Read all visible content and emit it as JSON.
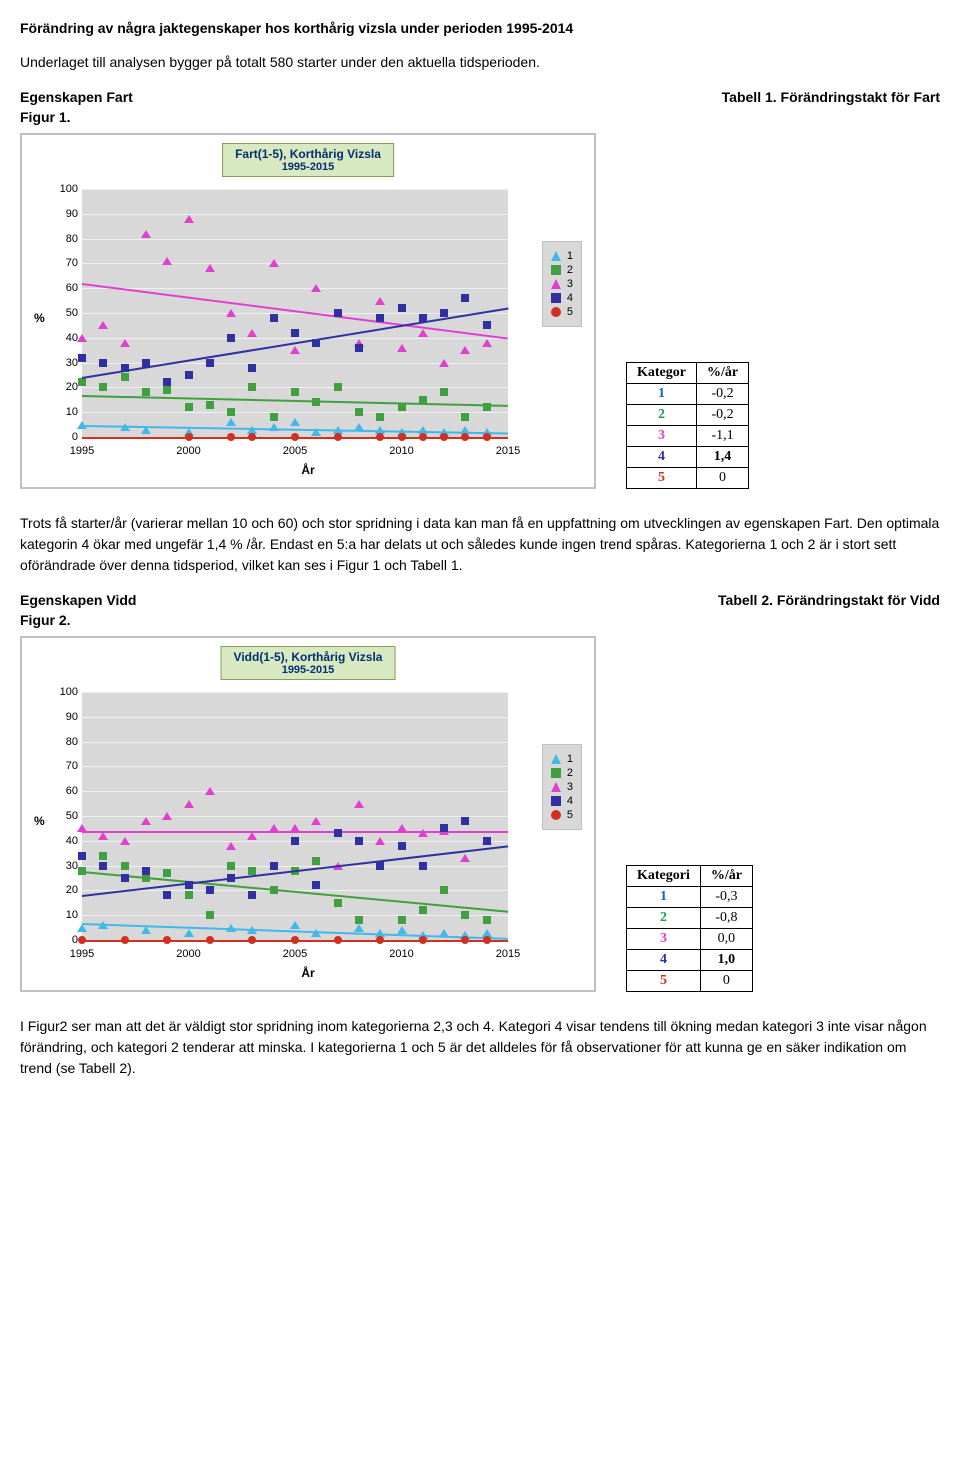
{
  "title": "Förändring av några jaktegenskaper hos korthårig vizsla under perioden 1995-2014",
  "intro": "Underlaget till analysen bygger på totalt 580 starter under den aktuella tidsperioden.",
  "sections": [
    {
      "prop_label": "Egenskapen Fart",
      "table_label": "Tabell 1. Förändringstakt för Fart",
      "fig_label": "Figur 1.",
      "chart": {
        "title_line1": "Fart(1-5), Korthårig Vizsla",
        "title_line2": "1995-2015",
        "ylabel": "%",
        "xlabel": "År",
        "ylim": [
          0,
          100
        ],
        "ytick_step": 10,
        "xlim": [
          1995,
          2015
        ],
        "xticks": [
          1995,
          2000,
          2005,
          2010,
          2015
        ],
        "plot_bg": "#d8d8d8",
        "grid_color": "#f0f0f0",
        "series": [
          {
            "name": "1",
            "color": "#40b8e8",
            "marker": "triangle",
            "points": [
              [
                1995,
                5
              ],
              [
                1997,
                4
              ],
              [
                1998,
                3
              ],
              [
                2000,
                2
              ],
              [
                2002,
                6
              ],
              [
                2003,
                3
              ],
              [
                2004,
                4
              ],
              [
                2005,
                6
              ],
              [
                2006,
                2
              ],
              [
                2007,
                3
              ],
              [
                2008,
                4
              ],
              [
                2009,
                3
              ],
              [
                2010,
                2
              ],
              [
                2011,
                3
              ],
              [
                2012,
                2
              ],
              [
                2013,
                3
              ],
              [
                2014,
                2
              ]
            ],
            "trend": {
              "y1": 5,
              "y2": 2
            }
          },
          {
            "name": "2",
            "color": "#40a040",
            "marker": "square",
            "points": [
              [
                1995,
                22
              ],
              [
                1996,
                20
              ],
              [
                1997,
                24
              ],
              [
                1998,
                18
              ],
              [
                1999,
                19
              ],
              [
                2000,
                12
              ],
              [
                2001,
                13
              ],
              [
                2002,
                10
              ],
              [
                2003,
                20
              ],
              [
                2004,
                8
              ],
              [
                2005,
                18
              ],
              [
                2006,
                14
              ],
              [
                2007,
                20
              ],
              [
                2008,
                10
              ],
              [
                2009,
                8
              ],
              [
                2010,
                12
              ],
              [
                2011,
                15
              ],
              [
                2012,
                18
              ],
              [
                2013,
                8
              ],
              [
                2014,
                12
              ]
            ],
            "trend": {
              "y1": 17,
              "y2": 13
            }
          },
          {
            "name": "3",
            "color": "#e040d0",
            "marker": "triangle",
            "points": [
              [
                1995,
                40
              ],
              [
                1996,
                45
              ],
              [
                1997,
                38
              ],
              [
                1998,
                82
              ],
              [
                1999,
                71
              ],
              [
                2000,
                88
              ],
              [
                2001,
                68
              ],
              [
                2002,
                50
              ],
              [
                2003,
                42
              ],
              [
                2004,
                70
              ],
              [
                2005,
                35
              ],
              [
                2006,
                60
              ],
              [
                2007,
                50
              ],
              [
                2008,
                38
              ],
              [
                2009,
                55
              ],
              [
                2010,
                36
              ],
              [
                2011,
                42
              ],
              [
                2012,
                30
              ],
              [
                2013,
                35
              ],
              [
                2014,
                38
              ]
            ],
            "trend": {
              "y1": 62,
              "y2": 40
            }
          },
          {
            "name": "4",
            "color": "#3030a0",
            "marker": "square",
            "points": [
              [
                1995,
                32
              ],
              [
                1996,
                30
              ],
              [
                1997,
                28
              ],
              [
                1998,
                30
              ],
              [
                1999,
                22
              ],
              [
                2000,
                25
              ],
              [
                2001,
                30
              ],
              [
                2002,
                40
              ],
              [
                2003,
                28
              ],
              [
                2004,
                48
              ],
              [
                2005,
                42
              ],
              [
                2006,
                38
              ],
              [
                2007,
                50
              ],
              [
                2008,
                36
              ],
              [
                2009,
                48
              ],
              [
                2010,
                52
              ],
              [
                2011,
                48
              ],
              [
                2012,
                50
              ],
              [
                2013,
                56
              ],
              [
                2014,
                45
              ]
            ],
            "trend": {
              "y1": 24,
              "y2": 52
            }
          },
          {
            "name": "5",
            "color": "#d03020",
            "marker": "circle",
            "points": [
              [
                2000,
                0
              ],
              [
                2002,
                0
              ],
              [
                2003,
                0
              ],
              [
                2005,
                0
              ],
              [
                2007,
                0
              ],
              [
                2009,
                0
              ],
              [
                2010,
                0
              ],
              [
                2011,
                0
              ],
              [
                2012,
                0
              ],
              [
                2013,
                0
              ],
              [
                2014,
                0
              ]
            ],
            "trend": {
              "y1": 0,
              "y2": 0
            }
          }
        ]
      },
      "table": {
        "headers": [
          "Kategor",
          "%/år"
        ],
        "rows": [
          {
            "cat": "1",
            "val": "-0,2",
            "bold": false
          },
          {
            "cat": "2",
            "val": "-0,2",
            "bold": false
          },
          {
            "cat": "3",
            "val": "-1,1",
            "bold": false
          },
          {
            "cat": "4",
            "val": "1,4",
            "bold": true
          },
          {
            "cat": "5",
            "val": "0",
            "bold": false
          }
        ]
      },
      "commentary": "Trots få starter/år (varierar mellan 10 och 60) och stor spridning i data kan man få en uppfattning om utvecklingen av egenskapen Fart. Den optimala kategorin 4 ökar med ungefär 1,4 % /år. Endast en 5:a har delats ut och således kunde ingen trend spåras. Kategorierna 1 och 2 är i stort sett oförändrade över denna tidsperiod, vilket kan ses i Figur 1 och Tabell 1."
    },
    {
      "prop_label": "Egenskapen Vidd",
      "table_label": "Tabell 2. Förändringstakt för Vidd",
      "fig_label": "Figur 2.",
      "chart": {
        "title_line1": "Vidd(1-5), Korthårig Vizsla",
        "title_line2": "1995-2015",
        "ylabel": "%",
        "xlabel": "År",
        "ylim": [
          0,
          100
        ],
        "ytick_step": 10,
        "xlim": [
          1995,
          2015
        ],
        "xticks": [
          1995,
          2000,
          2005,
          2010,
          2015
        ],
        "plot_bg": "#d8d8d8",
        "grid_color": "#f0f0f0",
        "series": [
          {
            "name": "1",
            "color": "#40b8e8",
            "marker": "triangle",
            "points": [
              [
                1995,
                5
              ],
              [
                1996,
                6
              ],
              [
                1998,
                4
              ],
              [
                2000,
                3
              ],
              [
                2002,
                5
              ],
              [
                2003,
                4
              ],
              [
                2005,
                6
              ],
              [
                2006,
                3
              ],
              [
                2008,
                5
              ],
              [
                2009,
                3
              ],
              [
                2010,
                4
              ],
              [
                2011,
                2
              ],
              [
                2012,
                3
              ],
              [
                2013,
                2
              ],
              [
                2014,
                3
              ]
            ],
            "trend": {
              "y1": 7,
              "y2": 1
            }
          },
          {
            "name": "2",
            "color": "#40a040",
            "marker": "square",
            "points": [
              [
                1995,
                28
              ],
              [
                1996,
                34
              ],
              [
                1997,
                30
              ],
              [
                1998,
                25
              ],
              [
                1999,
                27
              ],
              [
                2000,
                18
              ],
              [
                2001,
                10
              ],
              [
                2002,
                30
              ],
              [
                2003,
                28
              ],
              [
                2004,
                20
              ],
              [
                2005,
                28
              ],
              [
                2006,
                32
              ],
              [
                2007,
                15
              ],
              [
                2008,
                8
              ],
              [
                2009,
                30
              ],
              [
                2010,
                8
              ],
              [
                2011,
                12
              ],
              [
                2012,
                20
              ],
              [
                2013,
                10
              ],
              [
                2014,
                8
              ]
            ],
            "trend": {
              "y1": 28,
              "y2": 12
            }
          },
          {
            "name": "3",
            "color": "#e040d0",
            "marker": "triangle",
            "points": [
              [
                1995,
                45
              ],
              [
                1996,
                42
              ],
              [
                1997,
                40
              ],
              [
                1998,
                48
              ],
              [
                1999,
                50
              ],
              [
                2000,
                55
              ],
              [
                2001,
                60
              ],
              [
                2002,
                38
              ],
              [
                2003,
                42
              ],
              [
                2004,
                45
              ],
              [
                2005,
                45
              ],
              [
                2006,
                48
              ],
              [
                2007,
                30
              ],
              [
                2008,
                55
              ],
              [
                2009,
                40
              ],
              [
                2010,
                45
              ],
              [
                2011,
                43
              ],
              [
                2012,
                44
              ],
              [
                2013,
                33
              ],
              [
                2014,
                40
              ]
            ],
            "trend": {
              "y1": 44,
              "y2": 44
            }
          },
          {
            "name": "4",
            "color": "#3030a0",
            "marker": "square",
            "points": [
              [
                1995,
                34
              ],
              [
                1996,
                30
              ],
              [
                1997,
                25
              ],
              [
                1998,
                28
              ],
              [
                1999,
                18
              ],
              [
                2000,
                22
              ],
              [
                2001,
                20
              ],
              [
                2002,
                25
              ],
              [
                2003,
                18
              ],
              [
                2004,
                30
              ],
              [
                2005,
                40
              ],
              [
                2006,
                22
              ],
              [
                2007,
                43
              ],
              [
                2008,
                40
              ],
              [
                2009,
                30
              ],
              [
                2010,
                38
              ],
              [
                2011,
                30
              ],
              [
                2012,
                45
              ],
              [
                2013,
                48
              ],
              [
                2014,
                40
              ]
            ],
            "trend": {
              "y1": 18,
              "y2": 38
            }
          },
          {
            "name": "5",
            "color": "#d03020",
            "marker": "circle",
            "points": [
              [
                1995,
                0
              ],
              [
                1997,
                0
              ],
              [
                1999,
                0
              ],
              [
                2001,
                0
              ],
              [
                2003,
                0
              ],
              [
                2005,
                0
              ],
              [
                2007,
                0
              ],
              [
                2009,
                0
              ],
              [
                2011,
                0
              ],
              [
                2013,
                0
              ],
              [
                2014,
                0
              ]
            ],
            "trend": {
              "y1": 0,
              "y2": 0
            }
          }
        ]
      },
      "table": {
        "headers": [
          "Kategori",
          "%/år"
        ],
        "rows": [
          {
            "cat": "1",
            "val": "-0,3",
            "bold": false
          },
          {
            "cat": "2",
            "val": "-0,8",
            "bold": false
          },
          {
            "cat": "3",
            "val": "0,0",
            "bold": false
          },
          {
            "cat": "4",
            "val": "1,0",
            "bold": true
          },
          {
            "cat": "5",
            "val": "0",
            "bold": false
          }
        ]
      },
      "commentary": "I Figur2 ser man att det är väldigt stor spridning inom kategorierna 2,3 och 4. Kategori 4 visar tendens till ökning medan kategori 3 inte visar någon förändring, och kategori 2 tenderar att minska. I kategorierna 1 och 5 är det alldeles för få observationer för att kunna ge en säker indikation om trend (se Tabell 2)."
    }
  ]
}
